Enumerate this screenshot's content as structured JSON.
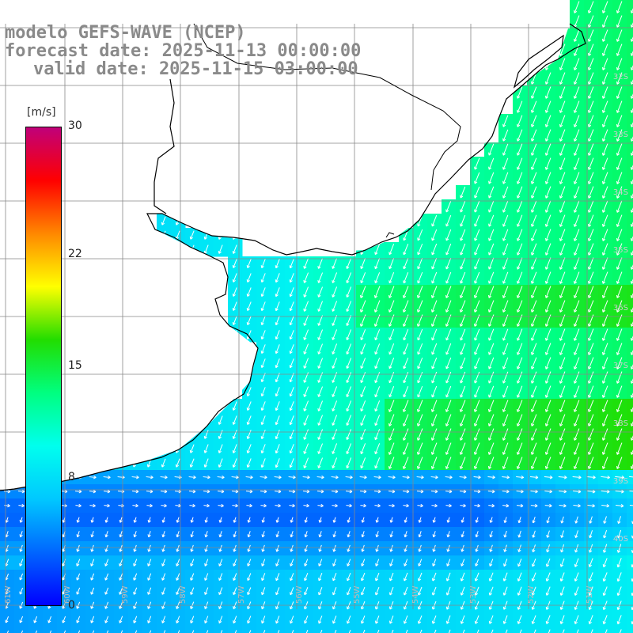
{
  "header": {
    "line1": "modelo GEFS-WAVE (NCEP)",
    "line2": "forecast date: 2025-11-13 00:00:00",
    "line3": "valid date: 2025-11-15 03:00:00"
  },
  "colorbar": {
    "unit": "[m/s]",
    "min": 0,
    "max": 30,
    "ticks": [
      {
        "label": "30",
        "value": 30
      },
      {
        "label": "22",
        "value": 22
      },
      {
        "label": "15",
        "value": 15
      },
      {
        "label": "8",
        "value": 8
      },
      {
        "label": "0",
        "value": 0
      }
    ],
    "colors": [
      "#0000ff",
      "#0066ff",
      "#00c8ff",
      "#00ffee",
      "#00ff80",
      "#22dd00",
      "#ffff00",
      "#ff8800",
      "#ff0000",
      "#c0007a"
    ]
  },
  "latitude_labels": [
    "32S",
    "33S",
    "34S",
    "35S",
    "36S",
    "37S",
    "38S",
    "39S",
    "40S"
  ],
  "longitude_labels": [
    "61W",
    "60W",
    "59W",
    "58W",
    "57W",
    "56W",
    "55W",
    "54W",
    "53W",
    "52W",
    "51W"
  ],
  "colors": {
    "grid": "#888888",
    "coast": "#000000",
    "land": "#ffffff",
    "arrow": "#ffffff",
    "title": "#8a8a8a"
  }
}
